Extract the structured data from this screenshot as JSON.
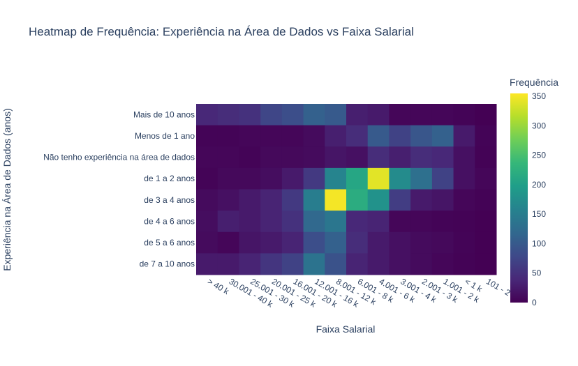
{
  "chart_data": {
    "type": "heatmap",
    "title": "Heatmap de Frequência: Experiência na Área de Dados vs Faixa Salarial",
    "xlabel": "Faixa Salarial",
    "ylabel": "Experiência na Área de Dados (anos)",
    "colorbar_title": "Frequência",
    "colorscale": "Viridis",
    "zlim": [
      0,
      355
    ],
    "colorbar_ticks": [
      0,
      50,
      100,
      150,
      200,
      250,
      300,
      350
    ],
    "x": [
      "> 40 k",
      "30.001 - 40 k",
      "25.001 - 30 k",
      "20.001 - 25 k",
      "16.001 - 20 k",
      "12.001 - 16 k",
      "8.001 - 12 k",
      "6.001 - 8 k",
      "4.001 - 6 k",
      "3.001 - 4 k",
      "2.001 - 3 k",
      "1.001 - 2 k",
      "< 1 k",
      "101 - 2"
    ],
    "y": [
      "Mais de 10 anos",
      "Menos de 1 ano",
      "Não tenho experiência na área de dados",
      "de 1 a 2 anos",
      "de 3 a 4 anos",
      "de 4 a 6 anos",
      "de 5 a 6 anos",
      "de 7 a 10 anos"
    ],
    "z": [
      [
        40,
        45,
        50,
        75,
        85,
        110,
        100,
        30,
        25,
        5,
        5,
        5,
        3,
        0
      ],
      [
        3,
        3,
        5,
        5,
        5,
        10,
        30,
        45,
        100,
        70,
        95,
        110,
        25,
        3
      ],
      [
        5,
        5,
        3,
        8,
        8,
        10,
        20,
        15,
        45,
        30,
        45,
        40,
        15,
        2
      ],
      [
        3,
        8,
        8,
        12,
        25,
        60,
        160,
        210,
        340,
        170,
        130,
        70,
        15,
        5
      ],
      [
        10,
        15,
        25,
        35,
        60,
        150,
        350,
        220,
        180,
        65,
        25,
        20,
        5,
        2
      ],
      [
        12,
        30,
        25,
        35,
        50,
        120,
        140,
        40,
        35,
        5,
        5,
        3,
        2,
        0
      ],
      [
        10,
        5,
        20,
        25,
        35,
        85,
        110,
        45,
        25,
        15,
        10,
        8,
        3,
        0
      ],
      [
        25,
        25,
        35,
        55,
        70,
        135,
        90,
        35,
        25,
        15,
        10,
        5,
        2,
        0
      ]
    ]
  }
}
